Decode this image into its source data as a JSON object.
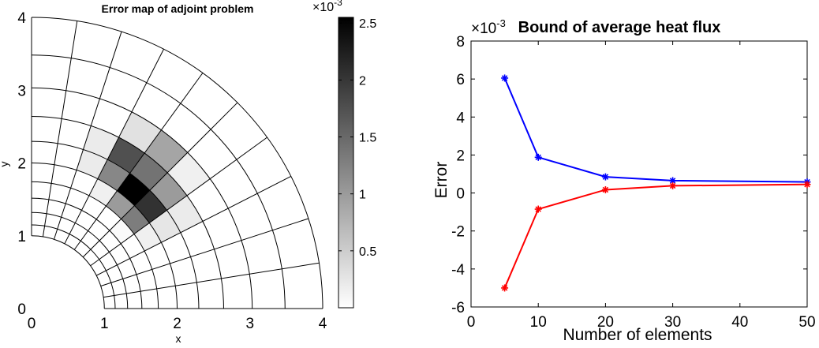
{
  "chart_data": [
    {
      "type": "heatmap",
      "title": "Error map of adjoint problem",
      "xlabel": "x",
      "ylabel": "y",
      "xlim": [
        0,
        4
      ],
      "ylim": [
        0,
        4
      ],
      "xticks": [
        "0",
        "1",
        "2",
        "3",
        "4"
      ],
      "yticks": [
        "0",
        "1",
        "2",
        "3",
        "4"
      ],
      "mesh": {
        "inner_radius": 1,
        "outer_radius": 4,
        "radial_divisions": 10,
        "angular_divisions": 10,
        "radial_scheme": "geometric, denser near inner arc"
      },
      "colorbar": {
        "exponent_label": "×10",
        "exponent_power": "-3",
        "tick_labels": [
          "0.5",
          "1",
          "1.5",
          "2",
          "2.5"
        ],
        "tick_values": [
          0.5,
          1.0,
          1.5,
          2.0,
          2.5
        ],
        "range": [
          0,
          2.55
        ],
        "colormap": "white-to-black"
      },
      "cells_note": "cells indexed [radial_ring, angular_sector], ring 0 at inner radius, sector 0 at x-axis; values ×1e-3",
      "cells": [
        {
          "ring": 3,
          "sector": 4,
          "value": 0.05
        },
        {
          "ring": 4,
          "sector": 3,
          "value": 0.15
        },
        {
          "ring": 4,
          "sector": 4,
          "value": 1.3
        },
        {
          "ring": 4,
          "sector": 5,
          "value": 1.0
        },
        {
          "ring": 4,
          "sector": 6,
          "value": 0.15
        },
        {
          "ring": 5,
          "sector": 3,
          "value": 0.25
        },
        {
          "ring": 5,
          "sector": 4,
          "value": 2.05
        },
        {
          "ring": 5,
          "sector": 5,
          "value": 2.55
        },
        {
          "ring": 5,
          "sector": 6,
          "value": 1.2
        },
        {
          "ring": 5,
          "sector": 7,
          "value": 0.2
        },
        {
          "ring": 6,
          "sector": 3,
          "value": 0.2
        },
        {
          "ring": 6,
          "sector": 4,
          "value": 1.0
        },
        {
          "ring": 6,
          "sector": 5,
          "value": 1.4
        },
        {
          "ring": 6,
          "sector": 6,
          "value": 1.75
        },
        {
          "ring": 6,
          "sector": 7,
          "value": 0.2
        },
        {
          "ring": 7,
          "sector": 4,
          "value": 0.15
        },
        {
          "ring": 7,
          "sector": 5,
          "value": 0.9
        },
        {
          "ring": 7,
          "sector": 6,
          "value": 0.3
        }
      ]
    },
    {
      "type": "line",
      "title": "Bound of average heat flux",
      "xlabel": "Number of elements",
      "ylabel": "Error",
      "xlim": [
        0,
        50
      ],
      "ylim": [
        -6,
        8
      ],
      "xticks": [
        "0",
        "10",
        "20",
        "30",
        "40",
        "50"
      ],
      "yticks": [
        "-6",
        "-4",
        "-2",
        "0",
        "2",
        "4",
        "6",
        "8"
      ],
      "y_exponent_label": "×10",
      "y_exponent_power": "-3",
      "x": [
        5,
        10,
        20,
        30,
        50
      ],
      "series": [
        {
          "color": "#0000ff",
          "values": [
            6.05,
            1.88,
            0.85,
            0.65,
            0.58
          ]
        },
        {
          "color": "#ff0000",
          "values": [
            -5.0,
            -0.85,
            0.17,
            0.38,
            0.45
          ]
        }
      ]
    }
  ]
}
